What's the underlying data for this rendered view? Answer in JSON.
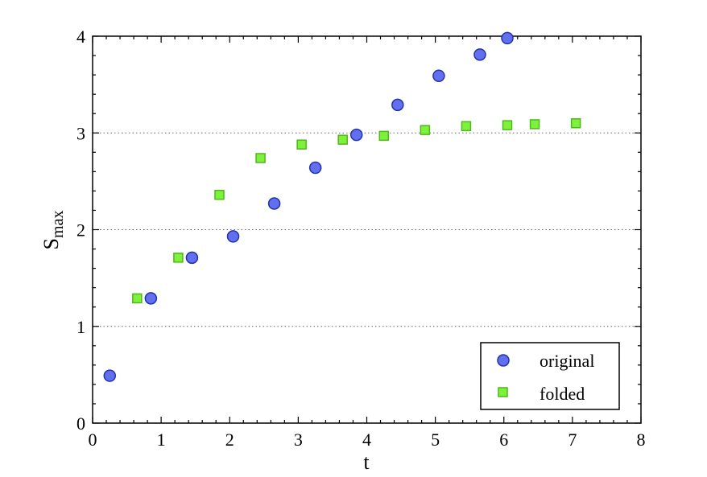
{
  "chart_data": {
    "type": "scatter",
    "title": "",
    "xlabel": "t",
    "ylabel": "S",
    "ylabel_subscript": "max",
    "xlim": [
      0,
      8
    ],
    "ylim": [
      0,
      4
    ],
    "x_ticks": [
      "0",
      "1",
      "2",
      "3",
      "4",
      "5",
      "6",
      "7",
      "8"
    ],
    "y_ticks": [
      "0",
      "1",
      "2",
      "3",
      "4"
    ],
    "grid": "horizontal dotted at y = 1, 2, 3",
    "legend_position": "bottom-right",
    "series": [
      {
        "name": "original",
        "marker": "circle",
        "color": "#6270f0",
        "edge_color": "#2233aa",
        "points": [
          [
            0.25,
            0.49
          ],
          [
            0.85,
            1.29
          ],
          [
            1.45,
            1.71
          ],
          [
            2.05,
            1.93
          ],
          [
            2.65,
            2.27
          ],
          [
            3.25,
            2.64
          ],
          [
            3.85,
            2.98
          ],
          [
            4.45,
            3.29
          ],
          [
            5.05,
            3.59
          ],
          [
            5.65,
            3.81
          ],
          [
            6.05,
            3.98
          ]
        ]
      },
      {
        "name": "folded",
        "marker": "square",
        "color": "#7ef23a",
        "edge_color": "#4fb81c",
        "points": [
          [
            0.65,
            1.29
          ],
          [
            1.25,
            1.71
          ],
          [
            1.85,
            2.36
          ],
          [
            2.45,
            2.74
          ],
          [
            3.05,
            2.88
          ],
          [
            3.65,
            2.93
          ],
          [
            4.25,
            2.97
          ],
          [
            4.85,
            3.03
          ],
          [
            5.45,
            3.07
          ],
          [
            6.05,
            3.08
          ],
          [
            6.45,
            3.09
          ],
          [
            7.05,
            3.1
          ]
        ]
      }
    ]
  }
}
